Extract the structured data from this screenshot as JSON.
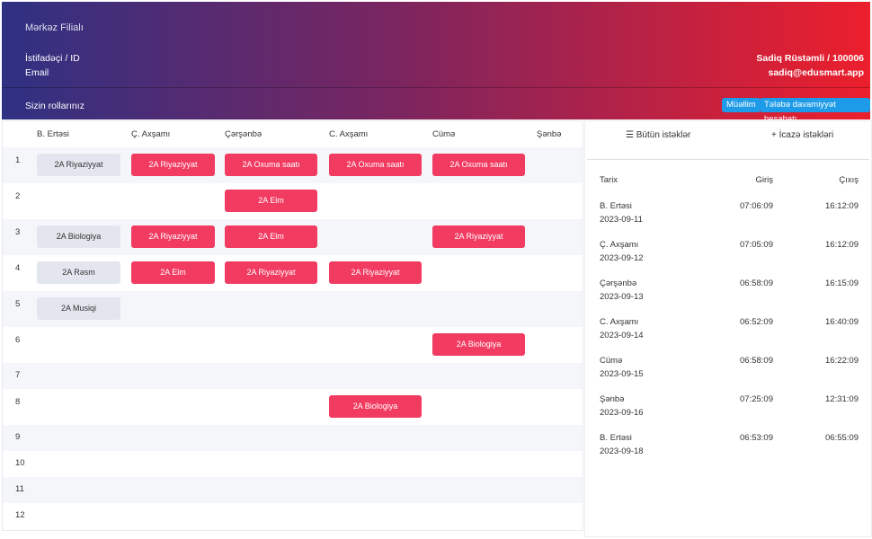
{
  "header": {
    "branch": "Mərkəz Filialı",
    "user_label": "İstifadəçi / ID",
    "email_label": "Email",
    "user_name": "Sadiq Rüstəmli / 100006",
    "user_email": "sadiq@edusmart.app",
    "roles_label": "Sizin rollarınız",
    "role_buttons": [
      "Müəllim",
      "Tələbə davamiyyət hesabatı"
    ]
  },
  "schedule": {
    "columns": [
      "B. Ertəsi",
      "Ç. Axşamı",
      "Çərşənbə",
      "C. Axşamı",
      "Cümə",
      "Şənbə"
    ],
    "rows": [
      {
        "number": 1,
        "cells": [
          "2A Riyaziyyat",
          "2A Riyaziyyat",
          "2A Oxuma saatı",
          "2A Oxuma saatı",
          "2A Oxuma saatı",
          null
        ]
      },
      {
        "number": 2,
        "cells": [
          null,
          null,
          "2A Elm",
          null,
          null,
          null
        ]
      },
      {
        "number": 3,
        "cells": [
          "2A Biologiya",
          "2A Riyaziyyat",
          "2A Elm",
          null,
          "2A Riyaziyyat",
          null
        ]
      },
      {
        "number": 4,
        "cells": [
          "2A Rəsm",
          "2A Elm",
          "2A Riyaziyyat",
          "2A Riyaziyyat",
          null,
          null
        ]
      },
      {
        "number": 5,
        "cells": [
          "2A Musiqi",
          null,
          null,
          null,
          null,
          null
        ]
      },
      {
        "number": 6,
        "cells": [
          null,
          null,
          null,
          null,
          "2A Biologiya",
          null
        ]
      },
      {
        "number": 7,
        "cells": [
          null,
          null,
          null,
          null,
          null,
          null
        ]
      },
      {
        "number": 8,
        "cells": [
          null,
          null,
          null,
          "2A Biologiya",
          null,
          null
        ]
      },
      {
        "number": 9,
        "cells": [
          null,
          null,
          null,
          null,
          null,
          null
        ]
      },
      {
        "number": 10,
        "cells": [
          null,
          null,
          null,
          null,
          null,
          null
        ]
      },
      {
        "number": 11,
        "cells": [
          null,
          null,
          null,
          null,
          null,
          null
        ]
      },
      {
        "number": 12,
        "cells": [
          null,
          null,
          null,
          null,
          null,
          null
        ]
      }
    ]
  },
  "attendance": {
    "tabs": [
      "Bütün istəklər",
      "İcazə istəkləri"
    ],
    "headers": [
      "Tarix",
      "Giriş",
      "Çıxış"
    ],
    "rows": [
      {
        "day": "B. Ertəsi",
        "date": "2023-09-11",
        "in": "07:06:09",
        "out": "16:12:09"
      },
      {
        "day": "Ç. Axşamı",
        "date": "2023-09-12",
        "in": "07:05:09",
        "out": "16:12:09"
      },
      {
        "day": "Çərşənbə",
        "date": "2023-09-13",
        "in": "06:58:09",
        "out": "16:15:09"
      },
      {
        "day": "C. Axşamı",
        "date": "2023-09-14",
        "in": "06:52:09",
        "out": "16:40:09"
      },
      {
        "day": "Cümə",
        "date": "2023-09-15",
        "in": "06:58:09",
        "out": "16:22:09"
      },
      {
        "day": "Şənbə",
        "date": "2023-09-16",
        "in": "07:25:09",
        "out": "12:31:09"
      },
      {
        "day": "B. Ertəsi",
        "date": "2023-09-18",
        "in": "06:53:09",
        "out": "06:55:09"
      }
    ]
  }
}
